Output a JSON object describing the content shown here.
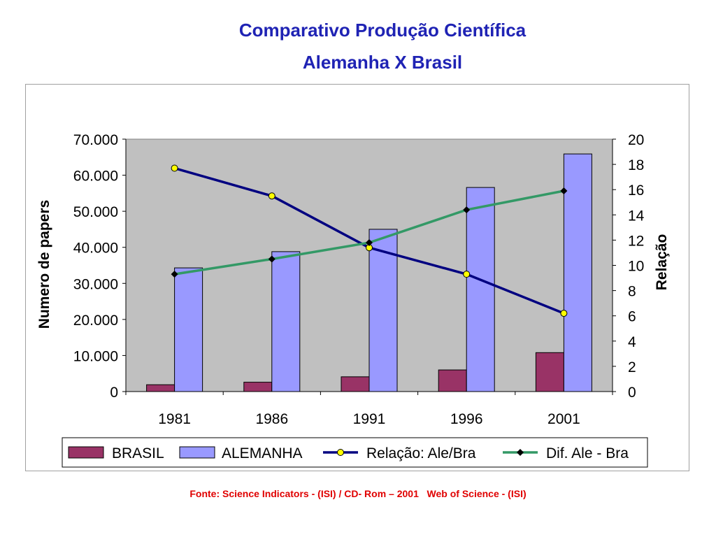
{
  "page": {
    "title_line1": "Comparativo Produção Científica",
    "title_line2": "Alemanha X Brasil",
    "source": "Fonte: Science Indicators - (ISI) / CD- Rom – 2001   Web of Science - (ISI)"
  },
  "chart_data": {
    "type": "bar",
    "categories": [
      "1981",
      "1986",
      "1991",
      "1996",
      "2001"
    ],
    "series": [
      {
        "name": "BRASIL",
        "type": "bar",
        "axis": "left",
        "color": "#993366",
        "values": [
          1900,
          2600,
          4100,
          6000,
          10800
        ]
      },
      {
        "name": "ALEMANHA",
        "type": "bar",
        "axis": "left",
        "color": "#9999ff",
        "values": [
          34300,
          38800,
          45000,
          56600,
          65900
        ]
      },
      {
        "name": "Relação: Ale/Bra",
        "type": "line",
        "axis": "right",
        "color": "#000080",
        "marker": "circle",
        "values": [
          17.7,
          15.5,
          11.4,
          9.3,
          6.2
        ]
      },
      {
        "name": "Dif. Ale - Bra",
        "type": "line",
        "axis": "right",
        "color": "#339966",
        "marker": "diamond",
        "values": [
          9.3,
          10.5,
          11.8,
          14.4,
          15.9
        ]
      }
    ],
    "ylabel": "Numero de papers",
    "y2label": "Relação",
    "ylim": [
      0,
      70000
    ],
    "y2lim": [
      0,
      20
    ],
    "yticks": [
      "0",
      "10.000",
      "20.000",
      "30.000",
      "40.000",
      "50.000",
      "60.000",
      "70.000"
    ],
    "y2ticks": [
      "0",
      "2",
      "4",
      "6",
      "8",
      "10",
      "12",
      "14",
      "16",
      "18",
      "20"
    ],
    "plot_background": "#c0c0c0",
    "grid": false,
    "legend_position": "bottom"
  }
}
